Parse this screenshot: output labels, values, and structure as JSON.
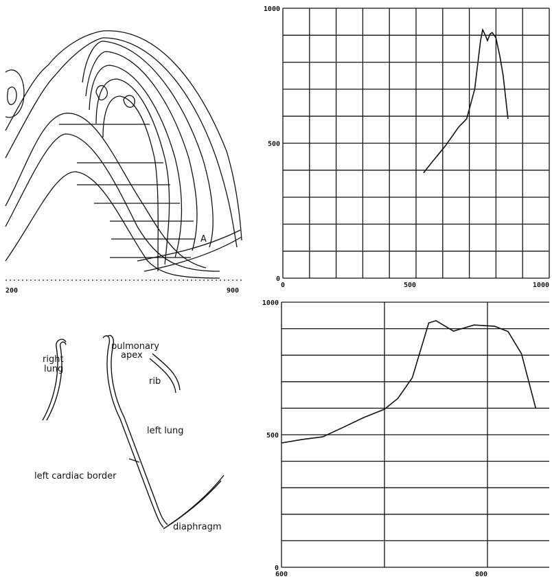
{
  "contour_map": {
    "x_labels": [
      "200",
      "900"
    ],
    "marker": "A"
  },
  "diagram": {
    "labels": [
      [
        "right",
        "lung"
      ],
      [
        "pulmonary",
        "apex"
      ],
      [
        "rib"
      ],
      [
        "left lung"
      ],
      [
        "left cardiac border"
      ],
      [
        "diaphragm"
      ]
    ]
  },
  "chart_data": [
    {
      "type": "line",
      "color": "#111111",
      "xlim": [
        0,
        1000
      ],
      "ylim": [
        0,
        1000
      ],
      "xticks": [
        0,
        500,
        1000
      ],
      "yticks": [
        0,
        500,
        1000
      ],
      "xgrid": [
        0,
        100,
        200,
        300,
        400,
        500,
        600,
        700,
        800,
        900,
        1000
      ],
      "ygrid": [
        0,
        100,
        200,
        300,
        400,
        500,
        600,
        700,
        800,
        900,
        1000
      ],
      "x": [
        528,
        560,
        610,
        660,
        690,
        720,
        742,
        750,
        760,
        768,
        778,
        786,
        800,
        815,
        827,
        845
      ],
      "values": [
        390,
        430,
        490,
        560,
        590,
        700,
        880,
        920,
        900,
        880,
        905,
        910,
        890,
        820,
        750,
        590
      ]
    },
    {
      "type": "line",
      "color": "#111111",
      "xlim": [
        600,
        860
      ],
      "ylim": [
        0,
        1000
      ],
      "xticks": [
        600,
        800
      ],
      "yticks": [
        0,
        500,
        1000
      ],
      "xgrid": [
        600,
        700,
        800
      ],
      "ygrid": [
        0,
        100,
        200,
        300,
        400,
        500,
        600,
        700,
        800,
        900,
        1000
      ],
      "x": [
        600,
        620,
        640,
        660,
        680,
        700,
        713,
        727,
        743,
        750,
        767,
        787,
        807,
        820,
        833,
        847
      ],
      "values": [
        469,
        482,
        492,
        528,
        565,
        596,
        637,
        715,
        922,
        930,
        891,
        914,
        909,
        889,
        806,
        598
      ]
    }
  ]
}
